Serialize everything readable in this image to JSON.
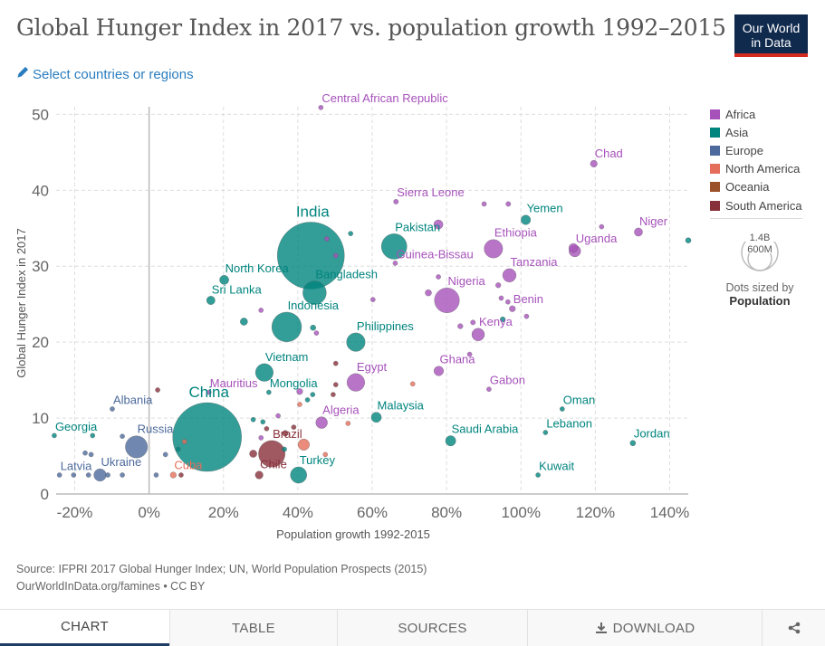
{
  "header": {
    "title": "Global Hunger Index in 2017 vs. population growth 1992–2015",
    "logo_line1": "Our World",
    "logo_line2": "in Data",
    "select_label": "Select countries or regions",
    "select_icon": "pencil-icon"
  },
  "legend": {
    "items": [
      {
        "label": "Africa",
        "color": "#a652ba"
      },
      {
        "label": "Asia",
        "color": "#00847e"
      },
      {
        "label": "Europe",
        "color": "#4c6a9c"
      },
      {
        "label": "North America",
        "color": "#e56e5a"
      },
      {
        "label": "Oceania",
        "color": "#9a5129"
      },
      {
        "label": "South America",
        "color": "#883039"
      }
    ],
    "size_large": "1.4B",
    "size_small": "600M",
    "size_caption": "Dots sized by",
    "size_variable": "Population"
  },
  "footer": {
    "source": "Source: IFPRI 2017 Global Hunger Index; UN, World Population Prospects (2015)",
    "license": "OurWorldInData.org/famines • CC BY"
  },
  "tabs": [
    {
      "label": "CHART",
      "active": true
    },
    {
      "label": "TABLE",
      "active": false
    },
    {
      "label": "SOURCES",
      "active": false
    },
    {
      "label": "DOWNLOAD",
      "active": false,
      "icon": "download-icon"
    },
    {
      "label": "",
      "active": false,
      "icon": "share-icon"
    }
  ],
  "chart_data": {
    "type": "scatter",
    "title": "Global Hunger Index in 2017 vs. population growth 1992–2015",
    "xlabel": "Population growth 1992-2015",
    "ylabel": "Global Hunger Index in 2017",
    "xlim": [
      -25,
      145
    ],
    "ylim": [
      0,
      50
    ],
    "xticks": [
      -20,
      0,
      20,
      40,
      60,
      80,
      100,
      120,
      140
    ],
    "xtick_labels": [
      "-20%",
      "0%",
      "20%",
      "40%",
      "60%",
      "80%",
      "100%",
      "120%",
      "140%"
    ],
    "yticks": [
      0,
      10,
      20,
      30,
      40,
      50
    ],
    "ytick_labels": [
      "0",
      "10",
      "20",
      "30",
      "40",
      "50"
    ],
    "grid": true,
    "legend_position": "right",
    "points": [
      {
        "label": "Central African Republic",
        "x": 46.2,
        "y": 50.9,
        "region": "Africa",
        "pop": 4.5
      },
      {
        "label": "Chad",
        "x": 119.6,
        "y": 43.5,
        "region": "Africa",
        "pop": 14
      },
      {
        "label": "Sierra Leone",
        "x": 66.4,
        "y": 38.5,
        "region": "Africa",
        "pop": 7
      },
      {
        "label": "Yemen",
        "x": 101.3,
        "y": 36.1,
        "region": "Asia",
        "pop": 27
      },
      {
        "label": "Niger",
        "x": 131.6,
        "y": 34.5,
        "region": "Africa",
        "pop": 20
      },
      {
        "label": "Uganda",
        "x": 114.5,
        "y": 32.0,
        "region": "Africa",
        "pop": 40
      },
      {
        "label": "Ethiopia",
        "x": 92.6,
        "y": 32.3,
        "region": "Africa",
        "pop": 100
      },
      {
        "label": "India",
        "x": 43.5,
        "y": 31.4,
        "region": "Asia",
        "pop": 1310
      },
      {
        "label": "Pakistan",
        "x": 65.9,
        "y": 32.6,
        "region": "Asia",
        "pop": 190
      },
      {
        "label": "Guinea-Bissau",
        "x": 66.2,
        "y": 30.4,
        "region": "Africa",
        "pop": 1.8
      },
      {
        "label": "Tanzania",
        "x": 96.9,
        "y": 28.8,
        "region": "Africa",
        "pop": 53
      },
      {
        "label": "North Korea",
        "x": 20.2,
        "y": 28.2,
        "region": "Asia",
        "pop": 25
      },
      {
        "label": "Bangladesh",
        "x": 44.5,
        "y": 26.5,
        "region": "Asia",
        "pop": 161
      },
      {
        "label": "Sri Lanka",
        "x": 16.6,
        "y": 25.5,
        "region": "Asia",
        "pop": 21
      },
      {
        "label": "Nigeria",
        "x": 80.1,
        "y": 25.5,
        "region": "Africa",
        "pop": 182
      },
      {
        "label": "Benin",
        "x": 97.7,
        "y": 24.4,
        "region": "Africa",
        "pop": 11
      },
      {
        "label": "Indonesia",
        "x": 37.0,
        "y": 22.0,
        "region": "Asia",
        "pop": 258
      },
      {
        "label": "Kenya",
        "x": 88.5,
        "y": 21.0,
        "region": "Africa",
        "pop": 47
      },
      {
        "label": "Philippines",
        "x": 55.6,
        "y": 20.0,
        "region": "Asia",
        "pop": 101
      },
      {
        "label": "Ghana",
        "x": 77.9,
        "y": 16.2,
        "region": "Africa",
        "pop": 27
      },
      {
        "label": "Vietnam",
        "x": 31.0,
        "y": 16.0,
        "region": "Asia",
        "pop": 92
      },
      {
        "label": "Egypt",
        "x": 55.6,
        "y": 14.7,
        "region": "Africa",
        "pop": 92
      },
      {
        "label": "Gabon",
        "x": 91.4,
        "y": 13.8,
        "region": "Africa",
        "pop": 1.9
      },
      {
        "label": "Mauritius",
        "x": 16.1,
        "y": 13.4,
        "region": "Africa",
        "pop": 1.3
      },
      {
        "label": "Mongolia",
        "x": 32.2,
        "y": 13.4,
        "region": "Asia",
        "pop": 3
      },
      {
        "label": "Albania",
        "x": -9.9,
        "y": 11.2,
        "region": "Europe",
        "pop": 2.9
      },
      {
        "label": "Oman",
        "x": 111.1,
        "y": 11.2,
        "region": "Asia",
        "pop": 4.5
      },
      {
        "label": "China",
        "x": 15.6,
        "y": 7.5,
        "region": "Asia",
        "pop": 1380
      },
      {
        "label": "Algeria",
        "x": 46.4,
        "y": 9.4,
        "region": "Africa",
        "pop": 40
      },
      {
        "label": "Malaysia",
        "x": 61.1,
        "y": 10.1,
        "region": "Asia",
        "pop": 30
      },
      {
        "label": "Lebanon",
        "x": 106.6,
        "y": 8.1,
        "region": "Asia",
        "pop": 5.9
      },
      {
        "label": "Georgia",
        "x": -25.5,
        "y": 7.7,
        "region": "Asia",
        "pop": 4
      },
      {
        "label": "Russia",
        "x": -3.4,
        "y": 6.2,
        "region": "Europe",
        "pop": 144
      },
      {
        "label": "Saudi Arabia",
        "x": 81.1,
        "y": 7.0,
        "region": "Asia",
        "pop": 31
      },
      {
        "label": "Jordan",
        "x": 130.1,
        "y": 6.7,
        "region": "Asia",
        "pop": 9.2
      },
      {
        "label": "Brazil",
        "x": 33.0,
        "y": 5.3,
        "region": "South America",
        "pop": 206
      },
      {
        "label": "Kuwait",
        "x": 104.6,
        "y": 2.5,
        "region": "Asia",
        "pop": 3.9
      },
      {
        "label": "Turkey",
        "x": 40.2,
        "y": 2.5,
        "region": "Asia",
        "pop": 78
      },
      {
        "label": "Chile",
        "x": 29.6,
        "y": 2.5,
        "region": "South America",
        "pop": 18
      },
      {
        "label": "Cuba",
        "x": 6.5,
        "y": 2.5,
        "region": "North America",
        "pop": 11
      },
      {
        "label": "Ukraine",
        "x": -13.2,
        "y": 2.5,
        "region": "Europe",
        "pop": 45
      },
      {
        "label": "Latvia",
        "x": -24.1,
        "y": 2.5,
        "region": "Europe",
        "pop": 2
      },
      {
        "label": "",
        "x": 145.0,
        "y": 33.4,
        "region": "Asia",
        "pop": 9
      },
      {
        "label": "",
        "x": 121.7,
        "y": 35.2,
        "region": "Africa",
        "pop": 5
      },
      {
        "label": "",
        "x": 90.1,
        "y": 38.2,
        "region": "Africa",
        "pop": 5
      },
      {
        "label": "",
        "x": 96.6,
        "y": 38.2,
        "region": "Africa",
        "pop": 7
      },
      {
        "label": "",
        "x": 77.8,
        "y": 35.5,
        "region": "Africa",
        "pop": 25
      },
      {
        "label": "",
        "x": 114.1,
        "y": 32.4,
        "region": "Africa",
        "pop": 24
      },
      {
        "label": "",
        "x": 54.2,
        "y": 34.3,
        "region": "Asia",
        "pop": 4
      },
      {
        "label": "",
        "x": 47.8,
        "y": 33.6,
        "region": "Africa",
        "pop": 6
      },
      {
        "label": "",
        "x": 50.2,
        "y": 31.4,
        "region": "Africa",
        "pop": 6
      },
      {
        "label": "",
        "x": 77.8,
        "y": 28.6,
        "region": "Africa",
        "pop": 5
      },
      {
        "label": "",
        "x": 75.1,
        "y": 26.5,
        "region": "Africa",
        "pop": 12
      },
      {
        "label": "",
        "x": 60.2,
        "y": 25.6,
        "region": "Africa",
        "pop": 4
      },
      {
        "label": "",
        "x": 93.9,
        "y": 27.5,
        "region": "Africa",
        "pop": 8
      },
      {
        "label": "",
        "x": 94.7,
        "y": 25.8,
        "region": "Africa",
        "pop": 5
      },
      {
        "label": "",
        "x": 96.5,
        "y": 25.3,
        "region": "Africa",
        "pop": 6
      },
      {
        "label": "",
        "x": 101.5,
        "y": 23.4,
        "region": "Africa",
        "pop": 6
      },
      {
        "label": "",
        "x": 87.1,
        "y": 22.6,
        "region": "Africa",
        "pop": 7
      },
      {
        "label": "",
        "x": 83.7,
        "y": 22.1,
        "region": "Africa",
        "pop": 8
      },
      {
        "label": "",
        "x": 95.1,
        "y": 23.0,
        "region": "Asia",
        "pop": 8
      },
      {
        "label": "",
        "x": 86.2,
        "y": 18.4,
        "region": "Africa",
        "pop": 4
      },
      {
        "label": "",
        "x": 30.1,
        "y": 24.2,
        "region": "Africa",
        "pop": 6
      },
      {
        "label": "",
        "x": 25.5,
        "y": 22.7,
        "region": "Asia",
        "pop": 16
      },
      {
        "label": "",
        "x": 44.1,
        "y": 21.9,
        "region": "Asia",
        "pop": 9
      },
      {
        "label": "",
        "x": 45.0,
        "y": 21.2,
        "region": "Africa",
        "pop": 5
      },
      {
        "label": "",
        "x": 50.2,
        "y": 17.2,
        "region": "South America",
        "pop": 3
      },
      {
        "label": "",
        "x": 50.2,
        "y": 14.4,
        "region": "South America",
        "pop": 3
      },
      {
        "label": "",
        "x": 49.5,
        "y": 13.1,
        "region": "South America",
        "pop": 6
      },
      {
        "label": "",
        "x": 44.0,
        "y": 13.1,
        "region": "Asia",
        "pop": 6
      },
      {
        "label": "",
        "x": 40.5,
        "y": 13.5,
        "region": "Africa",
        "pop": 11
      },
      {
        "label": "",
        "x": 42.6,
        "y": 12.4,
        "region": "Asia",
        "pop": 3
      },
      {
        "label": "",
        "x": 40.5,
        "y": 11.8,
        "region": "North America",
        "pop": 3
      },
      {
        "label": "",
        "x": 70.9,
        "y": 14.5,
        "region": "North America",
        "pop": 4
      },
      {
        "label": "",
        "x": 53.5,
        "y": 9.3,
        "region": "North America",
        "pop": 4
      },
      {
        "label": "",
        "x": 2.3,
        "y": 13.7,
        "region": "South America",
        "pop": 3
      },
      {
        "label": "",
        "x": 28.0,
        "y": 9.8,
        "region": "Asia",
        "pop": 3
      },
      {
        "label": "",
        "x": 30.6,
        "y": 9.5,
        "region": "Asia",
        "pop": 4
      },
      {
        "label": "",
        "x": 31.6,
        "y": 8.6,
        "region": "South America",
        "pop": 3
      },
      {
        "label": "",
        "x": 34.7,
        "y": 10.3,
        "region": "Africa",
        "pop": 6
      },
      {
        "label": "",
        "x": 38.9,
        "y": 8.8,
        "region": "South America",
        "pop": 6
      },
      {
        "label": "",
        "x": 30.1,
        "y": 7.4,
        "region": "Africa",
        "pop": 3
      },
      {
        "label": "",
        "x": 36.6,
        "y": 8.0,
        "region": "South America",
        "pop": 10
      },
      {
        "label": "",
        "x": 36.4,
        "y": 5.9,
        "region": "Asia",
        "pop": 5
      },
      {
        "label": "",
        "x": 41.6,
        "y": 6.5,
        "region": "North America",
        "pop": 38
      },
      {
        "label": "",
        "x": 47.4,
        "y": 5.2,
        "region": "North America",
        "pop": 3
      },
      {
        "label": "",
        "x": 28.0,
        "y": 5.3,
        "region": "South America",
        "pop": 16
      },
      {
        "label": "",
        "x": 9.5,
        "y": 6.9,
        "region": "North America",
        "pop": 4
      },
      {
        "label": "",
        "x": 7.8,
        "y": 5.9,
        "region": "Asia",
        "pop": 4
      },
      {
        "label": "",
        "x": 4.4,
        "y": 5.2,
        "region": "Europe",
        "pop": 3
      },
      {
        "label": "",
        "x": 1.9,
        "y": 2.5,
        "region": "Europe",
        "pop": 5
      },
      {
        "label": "",
        "x": 8.6,
        "y": 2.5,
        "region": "South America",
        "pop": 3
      },
      {
        "label": "",
        "x": -7.2,
        "y": 7.6,
        "region": "Europe",
        "pop": 3
      },
      {
        "label": "",
        "x": -15.2,
        "y": 7.7,
        "region": "Asia",
        "pop": 3
      },
      {
        "label": "",
        "x": -17.2,
        "y": 5.4,
        "region": "Europe",
        "pop": 3
      },
      {
        "label": "",
        "x": -15.6,
        "y": 5.2,
        "region": "Europe",
        "pop": 4
      },
      {
        "label": "",
        "x": -20.3,
        "y": 2.5,
        "region": "Europe",
        "pop": 2
      },
      {
        "label": "",
        "x": -16.3,
        "y": 2.5,
        "region": "Europe",
        "pop": 3
      },
      {
        "label": "",
        "x": -11.1,
        "y": 2.5,
        "region": "Europe",
        "pop": 3
      },
      {
        "label": "",
        "x": -7.2,
        "y": 2.5,
        "region": "Europe",
        "pop": 3
      }
    ]
  }
}
